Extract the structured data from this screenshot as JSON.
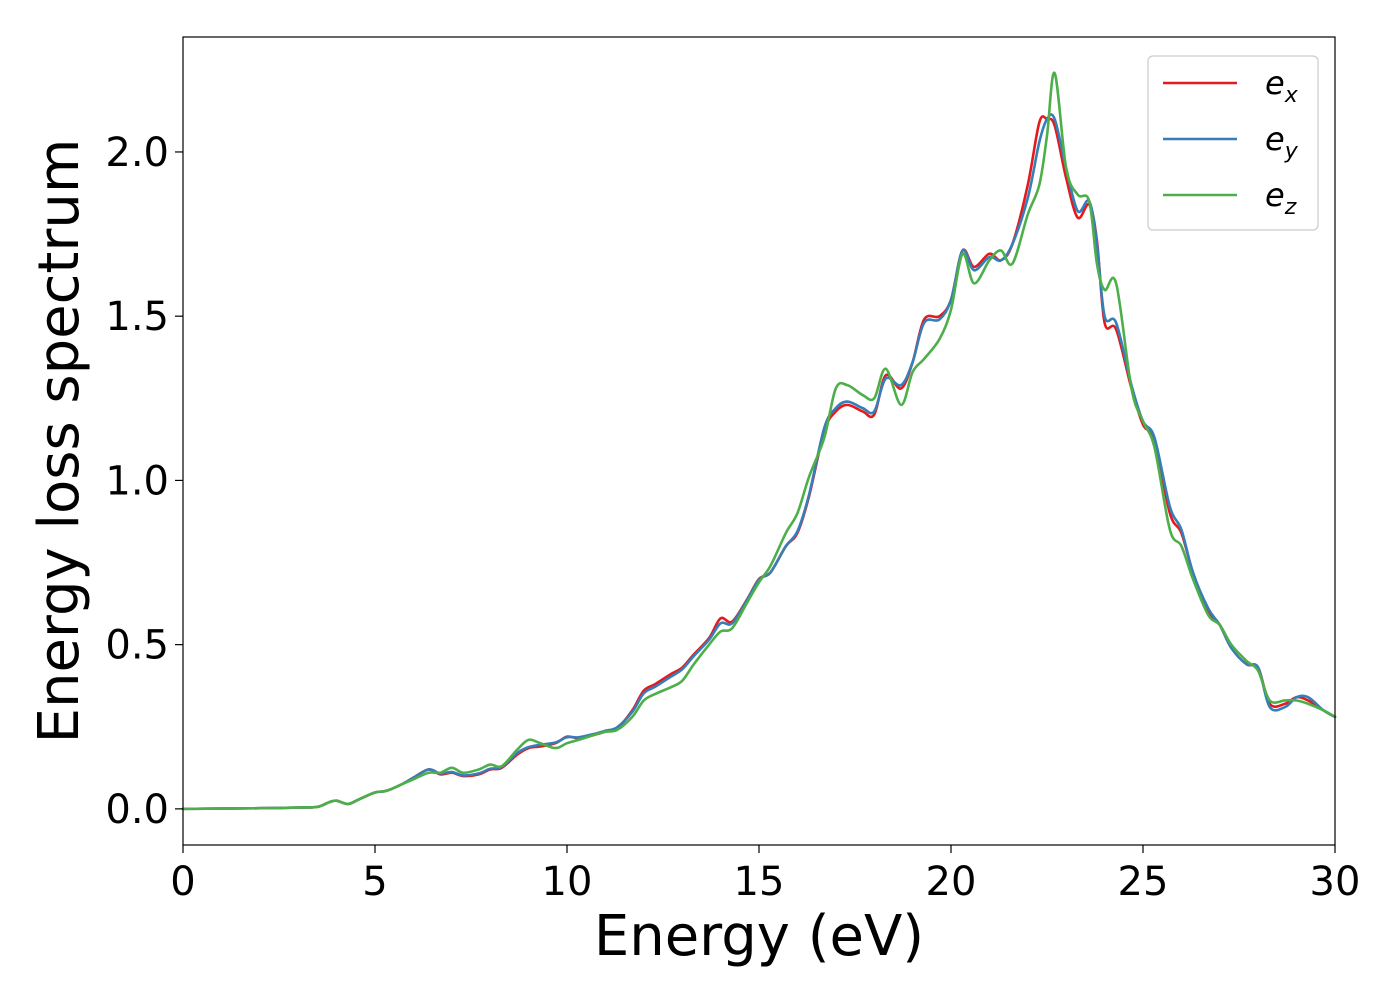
{
  "chart_data": {
    "type": "line",
    "xlabel": "Energy (eV)",
    "ylabel": "Energy loss spectrum",
    "xlim": [
      0,
      30
    ],
    "ylim": [
      -0.11,
      2.35
    ],
    "xticks": [
      0,
      5,
      10,
      15,
      20,
      25,
      30
    ],
    "yticks": [
      0.0,
      0.5,
      1.0,
      1.5,
      2.0
    ],
    "xtick_labels": [
      "0",
      "5",
      "10",
      "15",
      "20",
      "25",
      "30"
    ],
    "ytick_labels": [
      "0.0",
      "0.5",
      "1.0",
      "1.5",
      "2.0"
    ],
    "grid": false,
    "legend_position": "top-right",
    "series": [
      {
        "name": "e_x",
        "legend_base": "e",
        "legend_sub": "x",
        "color": "#e41a1c",
        "x": [
          0,
          1,
          2,
          3,
          3.5,
          3.8,
          4.0,
          4.3,
          4.6,
          5.0,
          5.3,
          5.7,
          6.0,
          6.4,
          6.7,
          7.0,
          7.3,
          7.7,
          8.0,
          8.3,
          8.7,
          9.0,
          9.3,
          9.7,
          10.0,
          10.3,
          10.7,
          11.0,
          11.3,
          11.7,
          12.0,
          12.3,
          12.7,
          13.0,
          13.3,
          13.7,
          14.0,
          14.3,
          14.7,
          15.0,
          15.3,
          15.7,
          16.0,
          16.3,
          16.7,
          17.0,
          17.3,
          17.7,
          18.0,
          18.3,
          18.7,
          19.0,
          19.3,
          19.7,
          20.0,
          20.3,
          20.6,
          21.0,
          21.3,
          21.6,
          22.0,
          22.3,
          22.5,
          22.7,
          23.0,
          23.3,
          23.6,
          23.8,
          24.0,
          24.3,
          24.7,
          25.0,
          25.3,
          25.7,
          26.0,
          26.3,
          26.7,
          27.0,
          27.3,
          27.7,
          28.0,
          28.3,
          28.7,
          29.0,
          29.3,
          29.7,
          30.0
        ],
        "y": [
          0,
          0.001,
          0.002,
          0.004,
          0.006,
          0.02,
          0.025,
          0.015,
          0.03,
          0.05,
          0.055,
          0.075,
          0.095,
          0.12,
          0.105,
          0.11,
          0.1,
          0.105,
          0.12,
          0.125,
          0.165,
          0.185,
          0.19,
          0.2,
          0.22,
          0.215,
          0.225,
          0.235,
          0.245,
          0.3,
          0.36,
          0.38,
          0.41,
          0.43,
          0.47,
          0.52,
          0.58,
          0.57,
          0.64,
          0.7,
          0.72,
          0.8,
          0.84,
          0.95,
          1.15,
          1.21,
          1.23,
          1.21,
          1.2,
          1.32,
          1.28,
          1.36,
          1.49,
          1.5,
          1.55,
          1.7,
          1.65,
          1.69,
          1.67,
          1.72,
          1.9,
          2.09,
          2.1,
          2.08,
          1.92,
          1.8,
          1.84,
          1.73,
          1.48,
          1.46,
          1.28,
          1.17,
          1.12,
          0.9,
          0.84,
          0.72,
          0.6,
          0.56,
          0.49,
          0.44,
          0.43,
          0.32,
          0.32,
          0.34,
          0.33,
          0.3,
          0.28
        ]
      },
      {
        "name": "e_y",
        "legend_base": "e",
        "legend_sub": "y",
        "color": "#377eb8",
        "x": [
          0,
          1,
          2,
          3,
          3.5,
          3.8,
          4.0,
          4.3,
          4.6,
          5.0,
          5.3,
          5.7,
          6.0,
          6.4,
          6.7,
          7.0,
          7.3,
          7.7,
          8.0,
          8.3,
          8.7,
          9.0,
          9.3,
          9.7,
          10.0,
          10.3,
          10.7,
          11.0,
          11.3,
          11.7,
          12.0,
          12.3,
          12.7,
          13.0,
          13.3,
          13.7,
          14.0,
          14.3,
          14.7,
          15.0,
          15.3,
          15.7,
          16.0,
          16.3,
          16.7,
          17.0,
          17.3,
          17.7,
          18.0,
          18.3,
          18.7,
          19.0,
          19.3,
          19.7,
          20.0,
          20.3,
          20.6,
          21.0,
          21.3,
          21.6,
          22.0,
          22.3,
          22.5,
          22.7,
          23.0,
          23.3,
          23.6,
          23.8,
          24.0,
          24.3,
          24.7,
          25.0,
          25.3,
          25.7,
          26.0,
          26.3,
          26.7,
          27.0,
          27.3,
          27.7,
          28.0,
          28.3,
          28.7,
          29.0,
          29.3,
          29.7,
          30.0
        ],
        "y": [
          0,
          0.001,
          0.002,
          0.004,
          0.006,
          0.02,
          0.025,
          0.015,
          0.03,
          0.05,
          0.055,
          0.075,
          0.095,
          0.12,
          0.108,
          0.112,
          0.102,
          0.108,
          0.122,
          0.128,
          0.17,
          0.188,
          0.195,
          0.202,
          0.218,
          0.218,
          0.228,
          0.238,
          0.248,
          0.295,
          0.352,
          0.372,
          0.402,
          0.425,
          0.465,
          0.515,
          0.565,
          0.565,
          0.638,
          0.698,
          0.72,
          0.8,
          0.845,
          0.955,
          1.16,
          1.22,
          1.24,
          1.22,
          1.21,
          1.31,
          1.29,
          1.36,
          1.48,
          1.49,
          1.55,
          1.7,
          1.64,
          1.68,
          1.67,
          1.72,
          1.86,
          2.03,
          2.1,
          2.1,
          1.95,
          1.82,
          1.85,
          1.72,
          1.5,
          1.48,
          1.29,
          1.18,
          1.13,
          0.92,
          0.85,
          0.72,
          0.61,
          0.56,
          0.49,
          0.44,
          0.43,
          0.31,
          0.31,
          0.34,
          0.34,
          0.3,
          0.28
        ]
      },
      {
        "name": "e_z",
        "legend_base": "e",
        "legend_sub": "z",
        "color": "#4daf4a",
        "x": [
          0,
          1,
          2,
          3,
          3.5,
          3.8,
          4.0,
          4.3,
          4.6,
          5.0,
          5.3,
          5.7,
          6.0,
          6.4,
          6.7,
          7.0,
          7.3,
          7.7,
          8.0,
          8.3,
          8.7,
          9.0,
          9.3,
          9.7,
          10.0,
          10.3,
          10.7,
          11.0,
          11.3,
          11.7,
          12.0,
          12.3,
          12.7,
          13.0,
          13.3,
          13.7,
          14.0,
          14.3,
          14.7,
          15.0,
          15.3,
          15.7,
          16.0,
          16.3,
          16.7,
          17.0,
          17.3,
          17.7,
          18.0,
          18.3,
          18.7,
          19.0,
          19.3,
          19.7,
          20.0,
          20.3,
          20.6,
          21.0,
          21.3,
          21.6,
          22.0,
          22.3,
          22.5,
          22.7,
          23.0,
          23.3,
          23.6,
          23.8,
          24.0,
          24.3,
          24.7,
          25.0,
          25.3,
          25.7,
          26.0,
          26.3,
          26.7,
          27.0,
          27.3,
          27.7,
          28.0,
          28.3,
          28.7,
          29.0,
          29.3,
          29.7,
          30.0
        ],
        "y": [
          0,
          0.001,
          0.002,
          0.004,
          0.006,
          0.02,
          0.025,
          0.015,
          0.03,
          0.05,
          0.055,
          0.075,
          0.09,
          0.11,
          0.11,
          0.125,
          0.11,
          0.12,
          0.135,
          0.13,
          0.18,
          0.21,
          0.2,
          0.185,
          0.2,
          0.21,
          0.225,
          0.235,
          0.24,
          0.28,
          0.33,
          0.35,
          0.37,
          0.39,
          0.44,
          0.5,
          0.54,
          0.55,
          0.63,
          0.69,
          0.74,
          0.84,
          0.9,
          1.01,
          1.13,
          1.28,
          1.29,
          1.26,
          1.25,
          1.34,
          1.23,
          1.33,
          1.37,
          1.43,
          1.52,
          1.69,
          1.6,
          1.67,
          1.7,
          1.66,
          1.81,
          1.9,
          2.05,
          2.24,
          1.95,
          1.87,
          1.85,
          1.66,
          1.58,
          1.6,
          1.28,
          1.18,
          1.1,
          0.85,
          0.8,
          0.7,
          0.59,
          0.56,
          0.5,
          0.45,
          0.42,
          0.33,
          0.33,
          0.33,
          0.32,
          0.3,
          0.28
        ]
      }
    ]
  }
}
